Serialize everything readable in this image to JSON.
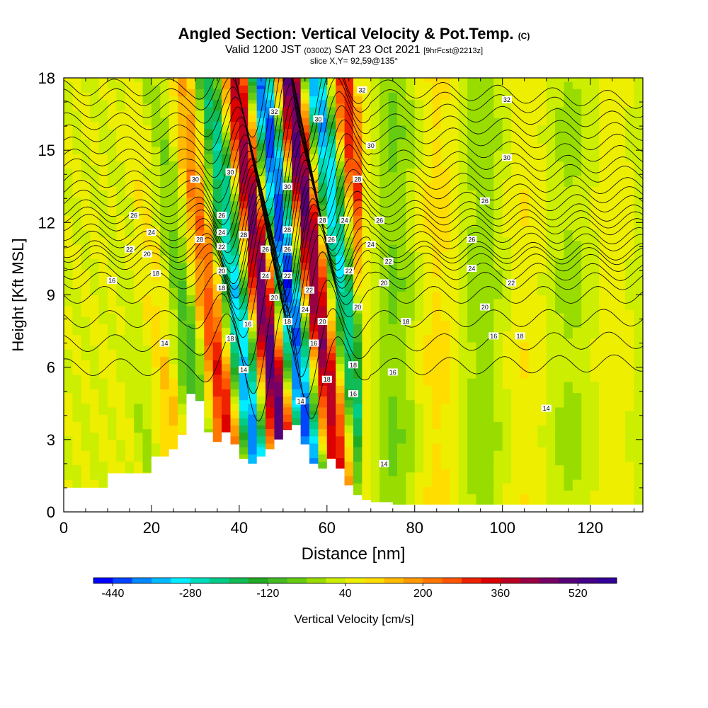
{
  "header": {
    "title": "Angled Section: Vertical Velocity & Pot.Temp.",
    "title_units": "(C)",
    "valid_prefix": "Valid 1200 JST",
    "valid_z": "(0300Z)",
    "valid_date": "SAT 23 Oct 2021",
    "forecast": "[9hrFcst@2213z]",
    "slice": "slice X,Y= 92,59@135°"
  },
  "chart_data": {
    "type": "heatmap",
    "xlabel": "Distance [nm]",
    "ylabel": "Height [Kft MSL]",
    "xlim": [
      0,
      132
    ],
    "ylim": [
      0,
      18
    ],
    "x_ticks": [
      0,
      20,
      40,
      60,
      80,
      100,
      120
    ],
    "y_ticks": [
      0,
      3,
      6,
      9,
      12,
      15,
      18
    ],
    "colorbar": {
      "label": "Vertical Velocity [cm/s]",
      "min": -480,
      "max": 600,
      "step": 40,
      "tick_values": [
        -440,
        -280,
        -120,
        40,
        200,
        360,
        520
      ],
      "tick_labels": [
        "-440",
        "-280",
        "-120",
        "40",
        "200",
        "360",
        "520"
      ],
      "colors": [
        "#0000ff",
        "#0044ff",
        "#0088ff",
        "#00bbff",
        "#00eeff",
        "#00ddbb",
        "#00cc88",
        "#11bb55",
        "#22aa22",
        "#44bb22",
        "#66cc11",
        "#99dd00",
        "#ccee00",
        "#eeee00",
        "#ffdd00",
        "#ffbb00",
        "#ff9900",
        "#ff7700",
        "#ff5500",
        "#ee2200",
        "#dd0000",
        "#bb0022",
        "#990044",
        "#770066",
        "#550077",
        "#440088",
        "#330099"
      ]
    },
    "terrain_profile": [
      [
        0,
        1.0
      ],
      [
        5,
        1.0
      ],
      [
        10,
        1.6
      ],
      [
        15,
        1.6
      ],
      [
        20,
        2.3
      ],
      [
        24,
        2.6
      ],
      [
        26,
        3.2
      ],
      [
        28,
        4.9
      ],
      [
        30,
        4.6
      ],
      [
        32,
        3.3
      ],
      [
        34,
        2.9
      ],
      [
        36,
        3.3
      ],
      [
        38,
        2.8
      ],
      [
        40,
        2.2
      ],
      [
        42,
        2.0
      ],
      [
        44,
        2.3
      ],
      [
        46,
        2.6
      ],
      [
        48,
        3.0
      ],
      [
        50,
        3.4
      ],
      [
        52,
        3.6
      ],
      [
        54,
        2.8
      ],
      [
        56,
        2.0
      ],
      [
        58,
        1.8
      ],
      [
        60,
        2.2
      ],
      [
        62,
        1.8
      ],
      [
        64,
        1.1
      ],
      [
        66,
        0.7
      ],
      [
        68,
        0.5
      ],
      [
        70,
        0.4
      ],
      [
        75,
        0.3
      ],
      [
        132,
        0.3
      ]
    ],
    "isentrope_labels": [
      {
        "text": "14",
        "x": 23,
        "y": 7.0
      },
      {
        "text": "16",
        "x": 11,
        "y": 9.6
      },
      {
        "text": "18",
        "x": 21,
        "y": 9.9
      },
      {
        "text": "20",
        "x": 19,
        "y": 10.7
      },
      {
        "text": "22",
        "x": 15,
        "y": 10.9
      },
      {
        "text": "24",
        "x": 20,
        "y": 11.6
      },
      {
        "text": "26",
        "x": 16,
        "y": 12.3
      },
      {
        "text": "28",
        "x": 31,
        "y": 11.3
      },
      {
        "text": "30",
        "x": 30,
        "y": 13.8
      },
      {
        "text": "32",
        "x": 48,
        "y": 16.6
      },
      {
        "text": "30",
        "x": 38,
        "y": 14.1
      },
      {
        "text": "26",
        "x": 36,
        "y": 12.3
      },
      {
        "text": "24",
        "x": 36,
        "y": 11.6
      },
      {
        "text": "22",
        "x": 36,
        "y": 11.0
      },
      {
        "text": "20",
        "x": 36,
        "y": 10.0
      },
      {
        "text": "18",
        "x": 36,
        "y": 9.3
      },
      {
        "text": "18",
        "x": 38,
        "y": 7.2
      },
      {
        "text": "16",
        "x": 42,
        "y": 7.8
      },
      {
        "text": "14",
        "x": 41,
        "y": 5.9
      },
      {
        "text": "28",
        "x": 41,
        "y": 11.5
      },
      {
        "text": "26",
        "x": 46,
        "y": 10.9
      },
      {
        "text": "24",
        "x": 46,
        "y": 9.8
      },
      {
        "text": "20",
        "x": 48,
        "y": 8.9
      },
      {
        "text": "30",
        "x": 51,
        "y": 13.5
      },
      {
        "text": "28",
        "x": 51,
        "y": 11.7
      },
      {
        "text": "26",
        "x": 51,
        "y": 10.9
      },
      {
        "text": "22",
        "x": 51,
        "y": 9.8
      },
      {
        "text": "18",
        "x": 51,
        "y": 7.9
      },
      {
        "text": "24",
        "x": 55,
        "y": 8.4
      },
      {
        "text": "22",
        "x": 56,
        "y": 9.2
      },
      {
        "text": "16",
        "x": 57,
        "y": 7.0
      },
      {
        "text": "14",
        "x": 54,
        "y": 4.6
      },
      {
        "text": "30",
        "x": 58,
        "y": 16.3
      },
      {
        "text": "28",
        "x": 59,
        "y": 12.1
      },
      {
        "text": "26",
        "x": 61,
        "y": 11.3
      },
      {
        "text": "20",
        "x": 59,
        "y": 7.9
      },
      {
        "text": "18",
        "x": 60,
        "y": 5.5
      },
      {
        "text": "24",
        "x": 64,
        "y": 12.1
      },
      {
        "text": "22",
        "x": 65,
        "y": 10.0
      },
      {
        "text": "20",
        "x": 67,
        "y": 8.5
      },
      {
        "text": "18",
        "x": 66,
        "y": 6.1
      },
      {
        "text": "16",
        "x": 66,
        "y": 4.9
      },
      {
        "text": "32",
        "x": 68,
        "y": 17.5
      },
      {
        "text": "30",
        "x": 70,
        "y": 15.2
      },
      {
        "text": "28",
        "x": 67,
        "y": 13.8
      },
      {
        "text": "26",
        "x": 72,
        "y": 12.1
      },
      {
        "text": "24",
        "x": 70,
        "y": 11.1
      },
      {
        "text": "22",
        "x": 74,
        "y": 10.4
      },
      {
        "text": "20",
        "x": 73,
        "y": 9.5
      },
      {
        "text": "18",
        "x": 78,
        "y": 7.9
      },
      {
        "text": "16",
        "x": 75,
        "y": 5.8
      },
      {
        "text": "14",
        "x": 73,
        "y": 2.0
      },
      {
        "text": "32",
        "x": 101,
        "y": 17.1
      },
      {
        "text": "30",
        "x": 101,
        "y": 14.7
      },
      {
        "text": "26",
        "x": 96,
        "y": 12.9
      },
      {
        "text": "26",
        "x": 93,
        "y": 11.3
      },
      {
        "text": "24",
        "x": 93,
        "y": 10.1
      },
      {
        "text": "22",
        "x": 102,
        "y": 9.5
      },
      {
        "text": "20",
        "x": 96,
        "y": 8.5
      },
      {
        "text": "16",
        "x": 98,
        "y": 7.3
      },
      {
        "text": "18",
        "x": 104,
        "y": 7.3
      },
      {
        "text": "14",
        "x": 110,
        "y": 4.3
      }
    ]
  }
}
